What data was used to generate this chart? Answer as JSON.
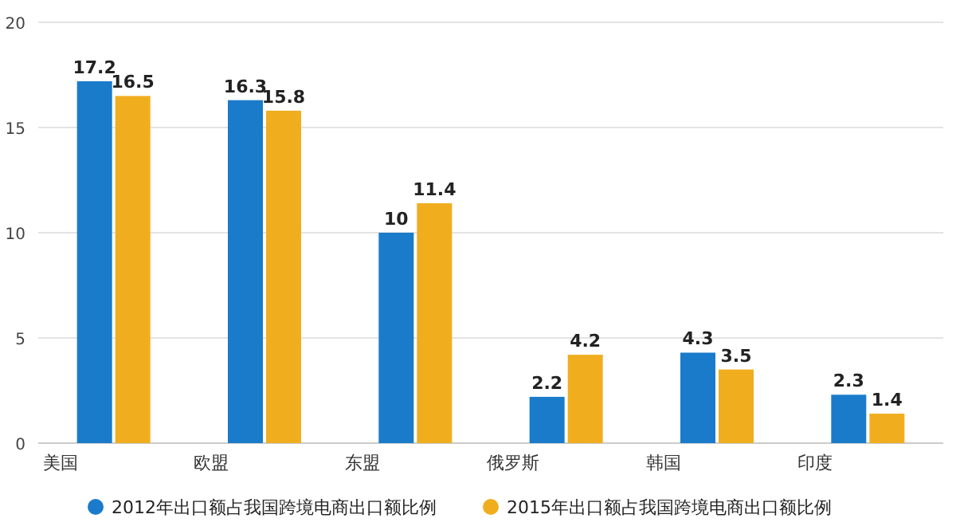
{
  "chart_data": {
    "type": "bar",
    "categories": [
      "美国",
      "欧盟",
      "东盟",
      "俄罗斯",
      "韩国",
      "印度"
    ],
    "series": [
      {
        "name": "2012年出口额占我国跨境电商出口额比例",
        "color": "#1a7bcb",
        "values": [
          17.2,
          16.3,
          10,
          2.2,
          4.3,
          2.3
        ]
      },
      {
        "name": "2015年出口额占我国跨境电商出口额比例",
        "color": "#f0ae1f",
        "values": [
          16.5,
          15.8,
          11.4,
          4.2,
          3.5,
          1.4
        ]
      }
    ],
    "ylim": [
      0,
      20
    ],
    "yticks": [
      0,
      5,
      10,
      15,
      20
    ],
    "grid": "y",
    "legend": "bottom",
    "data_labels": true
  }
}
